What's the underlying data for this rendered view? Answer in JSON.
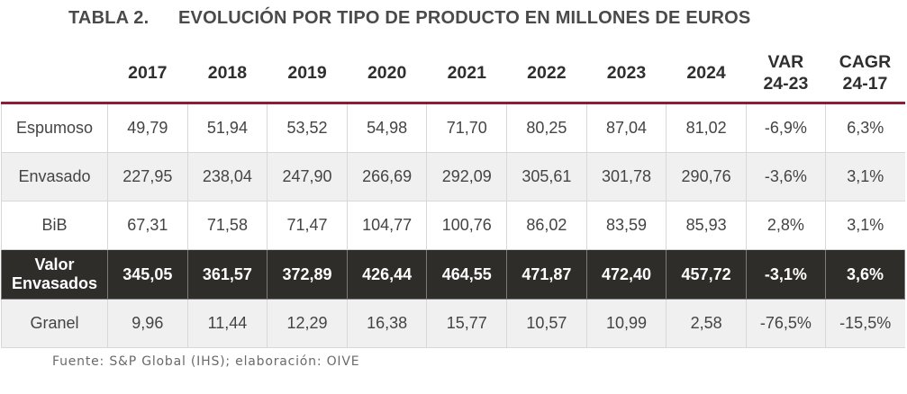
{
  "title": {
    "number": "TABLA 2.",
    "text": "EVOLUCIÓN POR TIPO DE PRODUCTO EN MILLONES DE EUROS"
  },
  "header": {
    "columns": [
      "2017",
      "2018",
      "2019",
      "2020",
      "2021",
      "2022",
      "2023",
      "2024"
    ],
    "var_line1": "VAR",
    "var_line2": "24-23",
    "cagr_line1": "CAGR",
    "cagr_line2": "24-17"
  },
  "rows": [
    {
      "label": "Espumoso",
      "values": [
        "49,79",
        "51,94",
        "53,52",
        "54,98",
        "71,70",
        "80,25",
        "87,04",
        "81,02"
      ],
      "var": "-6,9%",
      "cagr": "6,3%"
    },
    {
      "label": "Envasado",
      "values": [
        "227,95",
        "238,04",
        "247,90",
        "266,69",
        "292,09",
        "305,61",
        "301,78",
        "290,76"
      ],
      "var": "-3,6%",
      "cagr": "3,1%"
    },
    {
      "label": "BiB",
      "values": [
        "67,31",
        "71,58",
        "71,47",
        "104,77",
        "100,76",
        "86,02",
        "83,59",
        "85,93"
      ],
      "var": "2,8%",
      "cagr": "3,1%"
    },
    {
      "label_line1": "Valor",
      "label_line2": "Envasados",
      "values": [
        "345,05",
        "361,57",
        "372,89",
        "426,44",
        "464,55",
        "471,87",
        "472,40",
        "457,72"
      ],
      "var": "-3,1%",
      "cagr": "3,6%"
    },
    {
      "label": "Granel",
      "values": [
        "9,96",
        "11,44",
        "12,29",
        "16,38",
        "15,77",
        "10,57",
        "10,99",
        "2,58"
      ],
      "var": "-76,5%",
      "cagr": "-15,5%"
    }
  ],
  "source": "Fuente: S&P Global (IHS); elaboración: OIVE",
  "colors": {
    "header_rule": "#8c1d35",
    "total_row_bg": "#2e2d29",
    "alt_row_bg": "#f0f0f0"
  }
}
